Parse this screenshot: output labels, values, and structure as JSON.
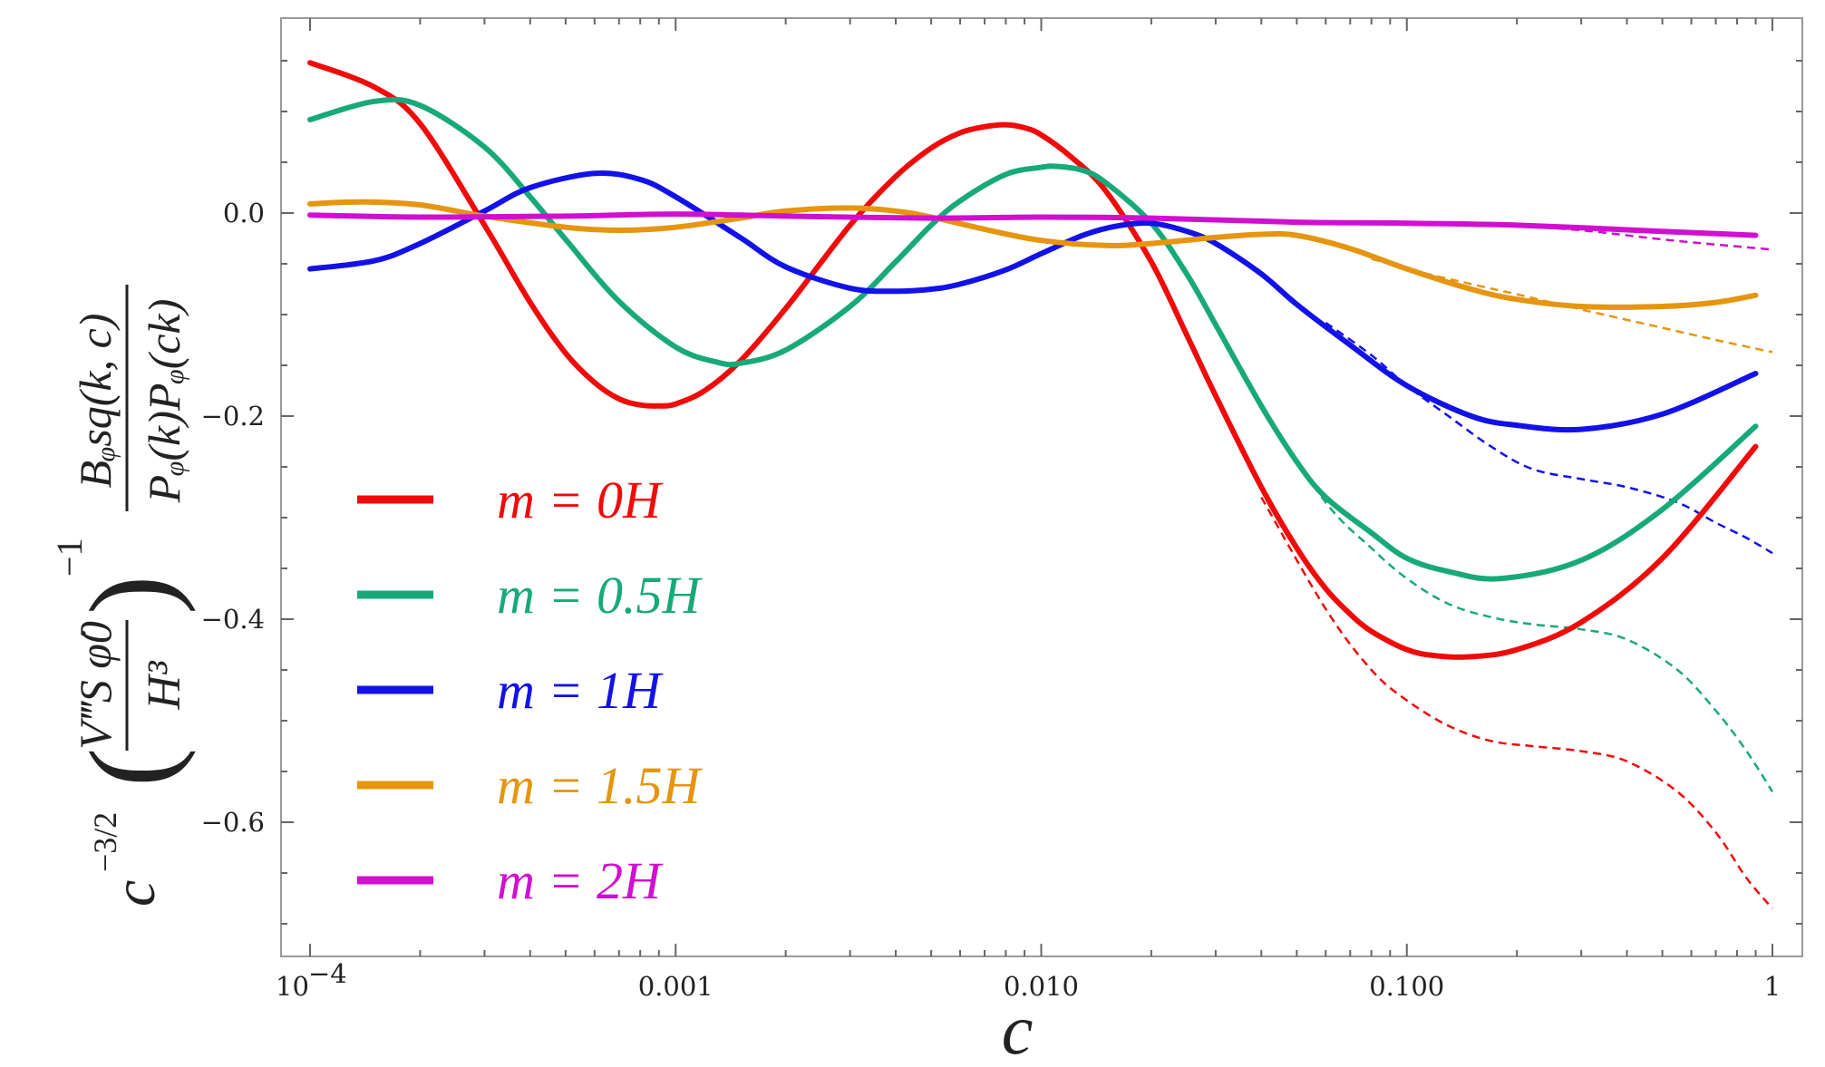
{
  "chart_data": {
    "type": "line",
    "xlabel": "c",
    "ylabel": {
      "factor": "c",
      "factor_exp": "−3/2",
      "paren_num": "V‴S φ̇0",
      "paren_den": "H³",
      "paren_exp": "−1",
      "frac_num": "Bᵩsq(k, c)",
      "frac_den": "Pᵩ(k)Pᵩ(ck)"
    },
    "x_scale": "log",
    "xlim": [
      0.0001,
      1
    ],
    "ylim": [
      -0.73,
      0.19
    ],
    "x_ticks": [
      {
        "value": 0.0001,
        "base": "10",
        "exp": "−4"
      },
      {
        "value": 0.001,
        "label": "0.001"
      },
      {
        "value": 0.01,
        "label": "0.010"
      },
      {
        "value": 0.1,
        "label": "0.100"
      },
      {
        "value": 1,
        "label": "1"
      }
    ],
    "y_ticks": [
      {
        "value": 0.0,
        "label": "0.0"
      },
      {
        "value": -0.2,
        "label": "−0.2"
      },
      {
        "value": -0.4,
        "label": "−0.4"
      },
      {
        "value": -0.6,
        "label": "−0.6"
      }
    ],
    "grid": false,
    "legend_position": "bottom-left",
    "series": [
      {
        "name": "m = 0H",
        "color": "#f00b0b",
        "x": [
          0.0001,
          0.00015,
          0.0002,
          0.0003,
          0.0004,
          0.0005,
          0.0006,
          0.0007,
          0.0008,
          0.0009,
          0.001,
          0.0012,
          0.0015,
          0.002,
          0.003,
          0.004,
          0.005,
          0.006,
          0.007,
          0.008,
          0.009,
          0.01,
          0.012,
          0.015,
          0.02,
          0.025,
          0.03,
          0.04,
          0.05,
          0.06,
          0.07,
          0.08,
          0.1,
          0.12,
          0.15,
          0.2,
          0.3,
          0.5,
          0.9
        ],
        "values": [
          0.148,
          0.124,
          0.088,
          -0.012,
          -0.088,
          -0.138,
          -0.167,
          -0.183,
          -0.189,
          -0.19,
          -0.188,
          -0.175,
          -0.146,
          -0.094,
          -0.012,
          0.036,
          0.064,
          0.079,
          0.085,
          0.087,
          0.084,
          0.077,
          0.056,
          0.022,
          -0.048,
          -0.12,
          -0.18,
          -0.27,
          -0.33,
          -0.37,
          -0.395,
          -0.412,
          -0.43,
          -0.436,
          -0.437,
          -0.43,
          -0.403,
          -0.34,
          -0.23
        ]
      },
      {
        "name": "m = 0.5H",
        "color": "#18a97b",
        "x": [
          0.0001,
          0.00015,
          0.0002,
          0.0003,
          0.0004,
          0.0005,
          0.0007,
          0.001,
          0.0013,
          0.0015,
          0.002,
          0.003,
          0.004,
          0.005,
          0.006,
          0.008,
          0.01,
          0.011,
          0.013,
          0.015,
          0.02,
          0.025,
          0.03,
          0.04,
          0.05,
          0.06,
          0.08,
          0.1,
          0.13,
          0.18,
          0.3,
          0.5,
          0.9
        ],
        "values": [
          0.092,
          0.11,
          0.106,
          0.065,
          0.016,
          -0.026,
          -0.087,
          -0.132,
          -0.147,
          -0.148,
          -0.135,
          -0.092,
          -0.048,
          -0.012,
          0.012,
          0.038,
          0.045,
          0.046,
          0.042,
          0.03,
          -0.01,
          -0.06,
          -0.11,
          -0.19,
          -0.245,
          -0.28,
          -0.315,
          -0.34,
          -0.353,
          -0.36,
          -0.342,
          -0.292,
          -0.21
        ]
      },
      {
        "name": "m = 1H",
        "color": "#1212e8",
        "x": [
          0.0001,
          0.00015,
          0.0002,
          0.0003,
          0.0004,
          0.0006,
          0.0008,
          0.001,
          0.0015,
          0.002,
          0.003,
          0.004,
          0.005,
          0.006,
          0.008,
          0.01,
          0.013,
          0.016,
          0.02,
          0.025,
          0.03,
          0.04,
          0.05,
          0.07,
          0.1,
          0.15,
          0.2,
          0.3,
          0.5,
          0.9
        ],
        "values": [
          -0.055,
          -0.047,
          -0.03,
          0.002,
          0.025,
          0.039,
          0.033,
          0.016,
          -0.024,
          -0.053,
          -0.074,
          -0.077,
          -0.075,
          -0.07,
          -0.056,
          -0.04,
          -0.022,
          -0.013,
          -0.01,
          -0.018,
          -0.03,
          -0.06,
          -0.09,
          -0.13,
          -0.17,
          -0.2,
          -0.209,
          -0.213,
          -0.198,
          -0.158
        ]
      },
      {
        "name": "m = 1.5H",
        "color": "#e5950f",
        "x": [
          0.0001,
          0.00014,
          0.0002,
          0.0003,
          0.0005,
          0.0007,
          0.001,
          0.0015,
          0.002,
          0.003,
          0.004,
          0.005,
          0.007,
          0.01,
          0.015,
          0.02,
          0.03,
          0.04,
          0.05,
          0.07,
          0.1,
          0.15,
          0.2,
          0.3,
          0.5,
          0.7,
          0.9
        ],
        "values": [
          0.009,
          0.011,
          0.008,
          -0.003,
          -0.014,
          -0.017,
          -0.014,
          -0.005,
          0.002,
          0.005,
          0.002,
          -0.004,
          -0.016,
          -0.027,
          -0.032,
          -0.03,
          -0.024,
          -0.021,
          -0.022,
          -0.035,
          -0.055,
          -0.075,
          -0.085,
          -0.092,
          -0.092,
          -0.088,
          -0.081
        ]
      },
      {
        "name": "m = 2H",
        "color": "#d10fd1",
        "x": [
          0.0001,
          0.0002,
          0.0005,
          0.001,
          0.002,
          0.005,
          0.01,
          0.02,
          0.05,
          0.1,
          0.2,
          0.5,
          0.9
        ],
        "values": [
          -0.002,
          -0.004,
          -0.003,
          -0.001,
          -0.003,
          -0.005,
          -0.004,
          -0.005,
          -0.009,
          -0.01,
          -0.012,
          -0.018,
          -0.022
        ]
      }
    ],
    "dashed_series": [
      {
        "color": "#f00b0b",
        "x": [
          0.04,
          0.06,
          0.08,
          0.1,
          0.13,
          0.17,
          0.22,
          0.3,
          0.4,
          0.55,
          0.7,
          0.85,
          1.0
        ],
        "values": [
          -0.28,
          -0.39,
          -0.45,
          -0.48,
          -0.505,
          -0.52,
          -0.525,
          -0.53,
          -0.54,
          -0.57,
          -0.61,
          -0.655,
          -0.685
        ]
      },
      {
        "color": "#18a97b",
        "x": [
          0.04,
          0.06,
          0.08,
          0.1,
          0.13,
          0.17,
          0.22,
          0.3,
          0.4,
          0.55,
          0.7,
          0.85,
          1.0
        ],
        "values": [
          -0.19,
          -0.285,
          -0.33,
          -0.36,
          -0.385,
          -0.398,
          -0.405,
          -0.41,
          -0.42,
          -0.45,
          -0.49,
          -0.53,
          -0.57
        ]
      },
      {
        "color": "#1212e8",
        "x": [
          0.06,
          0.08,
          0.1,
          0.13,
          0.17,
          0.22,
          0.3,
          0.4,
          0.55,
          0.7,
          0.85,
          1.0
        ],
        "values": [
          -0.108,
          -0.14,
          -0.17,
          -0.2,
          -0.23,
          -0.252,
          -0.262,
          -0.27,
          -0.285,
          -0.305,
          -0.32,
          -0.335
        ]
      },
      {
        "color": "#e5950f",
        "x": [
          0.08,
          0.1,
          0.15,
          0.2,
          0.3,
          0.5,
          0.7,
          1.0
        ],
        "values": [
          -0.045,
          -0.055,
          -0.07,
          -0.08,
          -0.095,
          -0.113,
          -0.125,
          -0.137
        ]
      },
      {
        "color": "#d10fd1",
        "x": [
          0.2,
          0.3,
          0.5,
          0.7,
          1.0
        ],
        "values": [
          -0.013,
          -0.017,
          -0.026,
          -0.031,
          -0.036
        ]
      }
    ]
  }
}
